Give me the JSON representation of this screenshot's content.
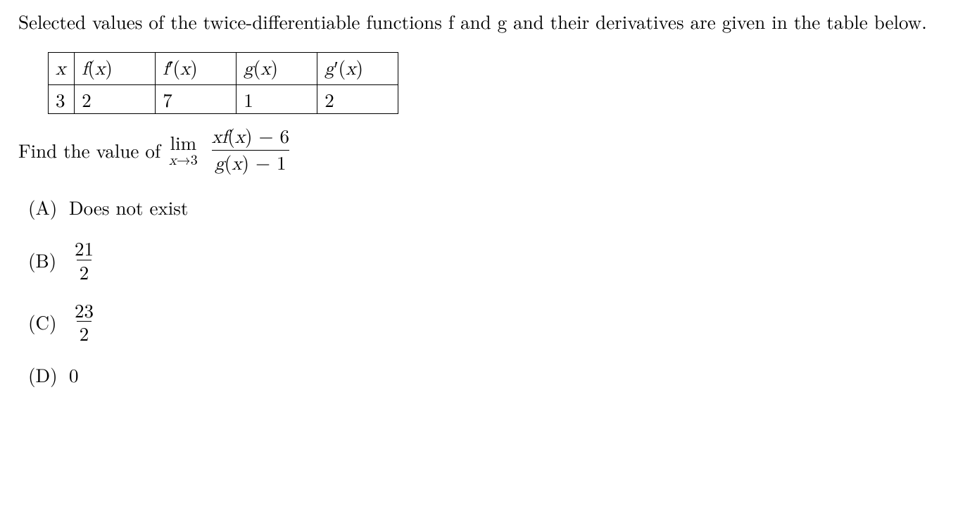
{
  "intro": "Selected values of the twice-differentiable functions f and g and their derivatives are given in the table below.",
  "table": {
    "headers": {
      "x": "x",
      "fx": "f(x)",
      "fpx": "f′(x)",
      "gx": "g(x)",
      "gpx": "g′(x)"
    },
    "row": {
      "x": "3",
      "fx": "2",
      "fpx": "7",
      "gx": "1",
      "gpx": "2"
    }
  },
  "question": {
    "prefix": "Find the value of",
    "lim_top": "lim",
    "lim_bot": "x→3",
    "frac_num": "xf(x) − 6",
    "frac_den": "g(x) − 1"
  },
  "choices": {
    "A": {
      "label": "(A)",
      "text": "Does not exist"
    },
    "B": {
      "label": "(B)",
      "num": "21",
      "den": "2"
    },
    "C": {
      "label": "(C)",
      "num": "23",
      "den": "2"
    },
    "D": {
      "label": "(D)",
      "text": "0"
    }
  },
  "style": {
    "font_size_pt": 20,
    "text_color": "#000000",
    "background_color": "#ffffff",
    "border_color": "#000000"
  }
}
